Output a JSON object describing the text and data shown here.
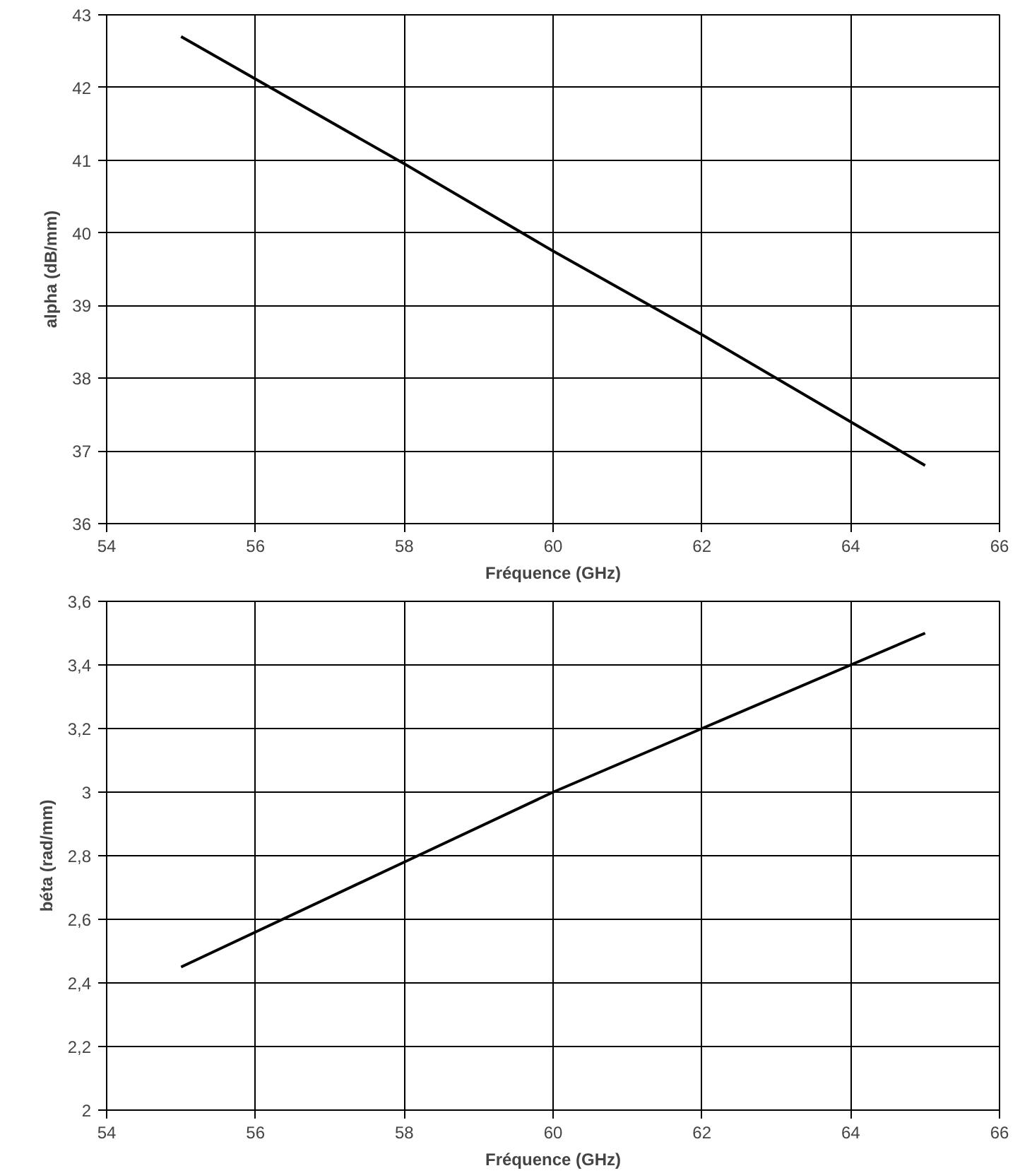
{
  "chart_data": [
    {
      "type": "line",
      "xlabel": "Fréquence (GHz)",
      "ylabel": "alpha (dB/mm)",
      "x": [
        55,
        58,
        60,
        62,
        65
      ],
      "series": [
        {
          "color": "#000000",
          "values": [
            42.7,
            40.95,
            39.75,
            38.6,
            36.8
          ]
        }
      ],
      "xlim": [
        54,
        66
      ],
      "xticks": [
        54,
        56,
        58,
        60,
        62,
        64,
        66
      ],
      "ylim": [
        36,
        43
      ],
      "yticks": [
        36,
        37,
        38,
        39,
        40,
        41,
        42,
        43
      ],
      "grid": true,
      "marker": "none",
      "line_style": "solid"
    },
    {
      "type": "line",
      "xlabel": "Fréquence (GHz)",
      "ylabel": "béta (rad/mm)",
      "x": [
        55,
        58,
        60,
        62,
        65
      ],
      "series": [
        {
          "color": "#000000",
          "values": [
            2.45,
            2.78,
            3.0,
            3.2,
            3.5
          ]
        }
      ],
      "xlim": [
        54,
        66
      ],
      "xticks": [
        54,
        56,
        58,
        60,
        62,
        64,
        66
      ],
      "ylim": [
        2,
        3.6
      ],
      "yticks": [
        2,
        {
          "value": 2.2,
          "label": "2,2"
        },
        {
          "value": 2.4,
          "label": "2,4"
        },
        {
          "value": 2.6,
          "label": "2,6"
        },
        {
          "value": 2.8,
          "label": "2,8"
        },
        3,
        {
          "value": 3.2,
          "label": "3,2"
        },
        {
          "value": 3.4,
          "label": "3,4"
        },
        {
          "value": 3.6,
          "label": "3,6"
        }
      ],
      "grid": true,
      "marker": "none",
      "line_style": "solid"
    }
  ]
}
